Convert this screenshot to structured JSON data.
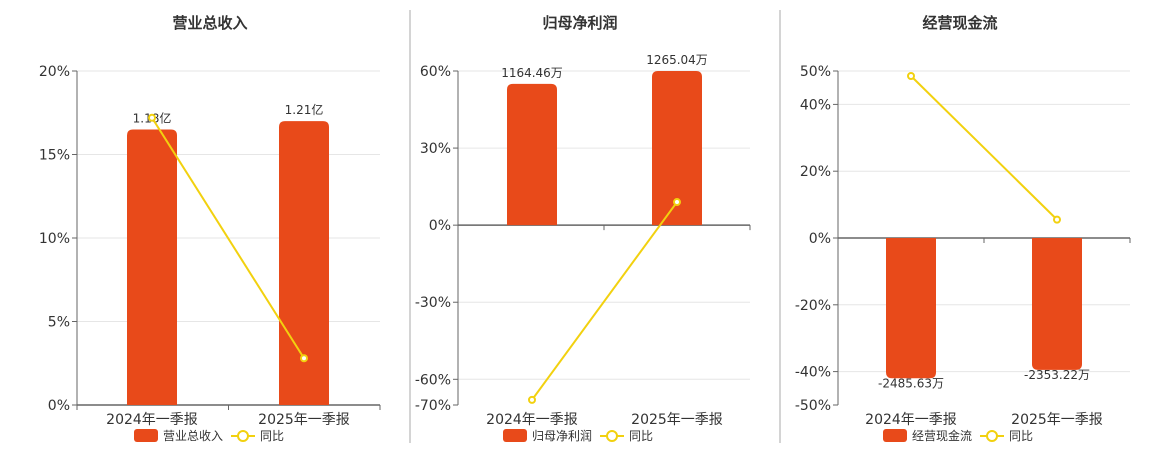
{
  "colors": {
    "bar": "#E84A1A",
    "line": "#F2D10F",
    "axis": "#666666",
    "grid": "#E6E6E6",
    "divider": "#AAAAAA"
  },
  "chart_data": [
    {
      "type": "bar",
      "title": "营业总收入",
      "categories": [
        "2024年一季报",
        "2025年一季报"
      ],
      "bar_values": [
        16.5,
        17.0
      ],
      "bar_labels": [
        "1.18亿",
        "1.21亿"
      ],
      "line_values": [
        17.2,
        2.8
      ],
      "ylim": [
        0,
        20
      ],
      "yticks": [
        0,
        5,
        10,
        15,
        20
      ],
      "ytick_labels": [
        "0%",
        "5%",
        "10%",
        "15%",
        "20%"
      ],
      "legend": {
        "bar": "营业总收入",
        "line": "同比"
      }
    },
    {
      "type": "bar",
      "title": "归母净利润",
      "categories": [
        "2024年一季报",
        "2025年一季报"
      ],
      "bar_values": [
        55,
        60
      ],
      "bar_labels": [
        "1164.46万",
        "1265.04万"
      ],
      "line_values": [
        -68,
        9
      ],
      "ylim": [
        -70,
        60
      ],
      "yticks": [
        -70,
        -60,
        -30,
        0,
        30,
        60
      ],
      "ytick_labels": [
        "-70%",
        "-60%",
        "-30%",
        "0%",
        "30%",
        "60%"
      ],
      "legend": {
        "bar": "归母净利润",
        "line": "同比"
      }
    },
    {
      "type": "bar",
      "title": "经营现金流",
      "categories": [
        "2024年一季报",
        "2025年一季报"
      ],
      "bar_values": [
        -42,
        -39.5
      ],
      "bar_labels": [
        "-2485.63万",
        "-2353.22万"
      ],
      "line_values": [
        48.5,
        5.5
      ],
      "ylim": [
        -50,
        50
      ],
      "yticks": [
        -50,
        -40,
        -20,
        0,
        20,
        40,
        50
      ],
      "ytick_labels": [
        "-50%",
        "-40%",
        "-20%",
        "0%",
        "20%",
        "40%",
        "50%"
      ],
      "legend": {
        "bar": "经营现金流",
        "line": "同比"
      }
    }
  ]
}
